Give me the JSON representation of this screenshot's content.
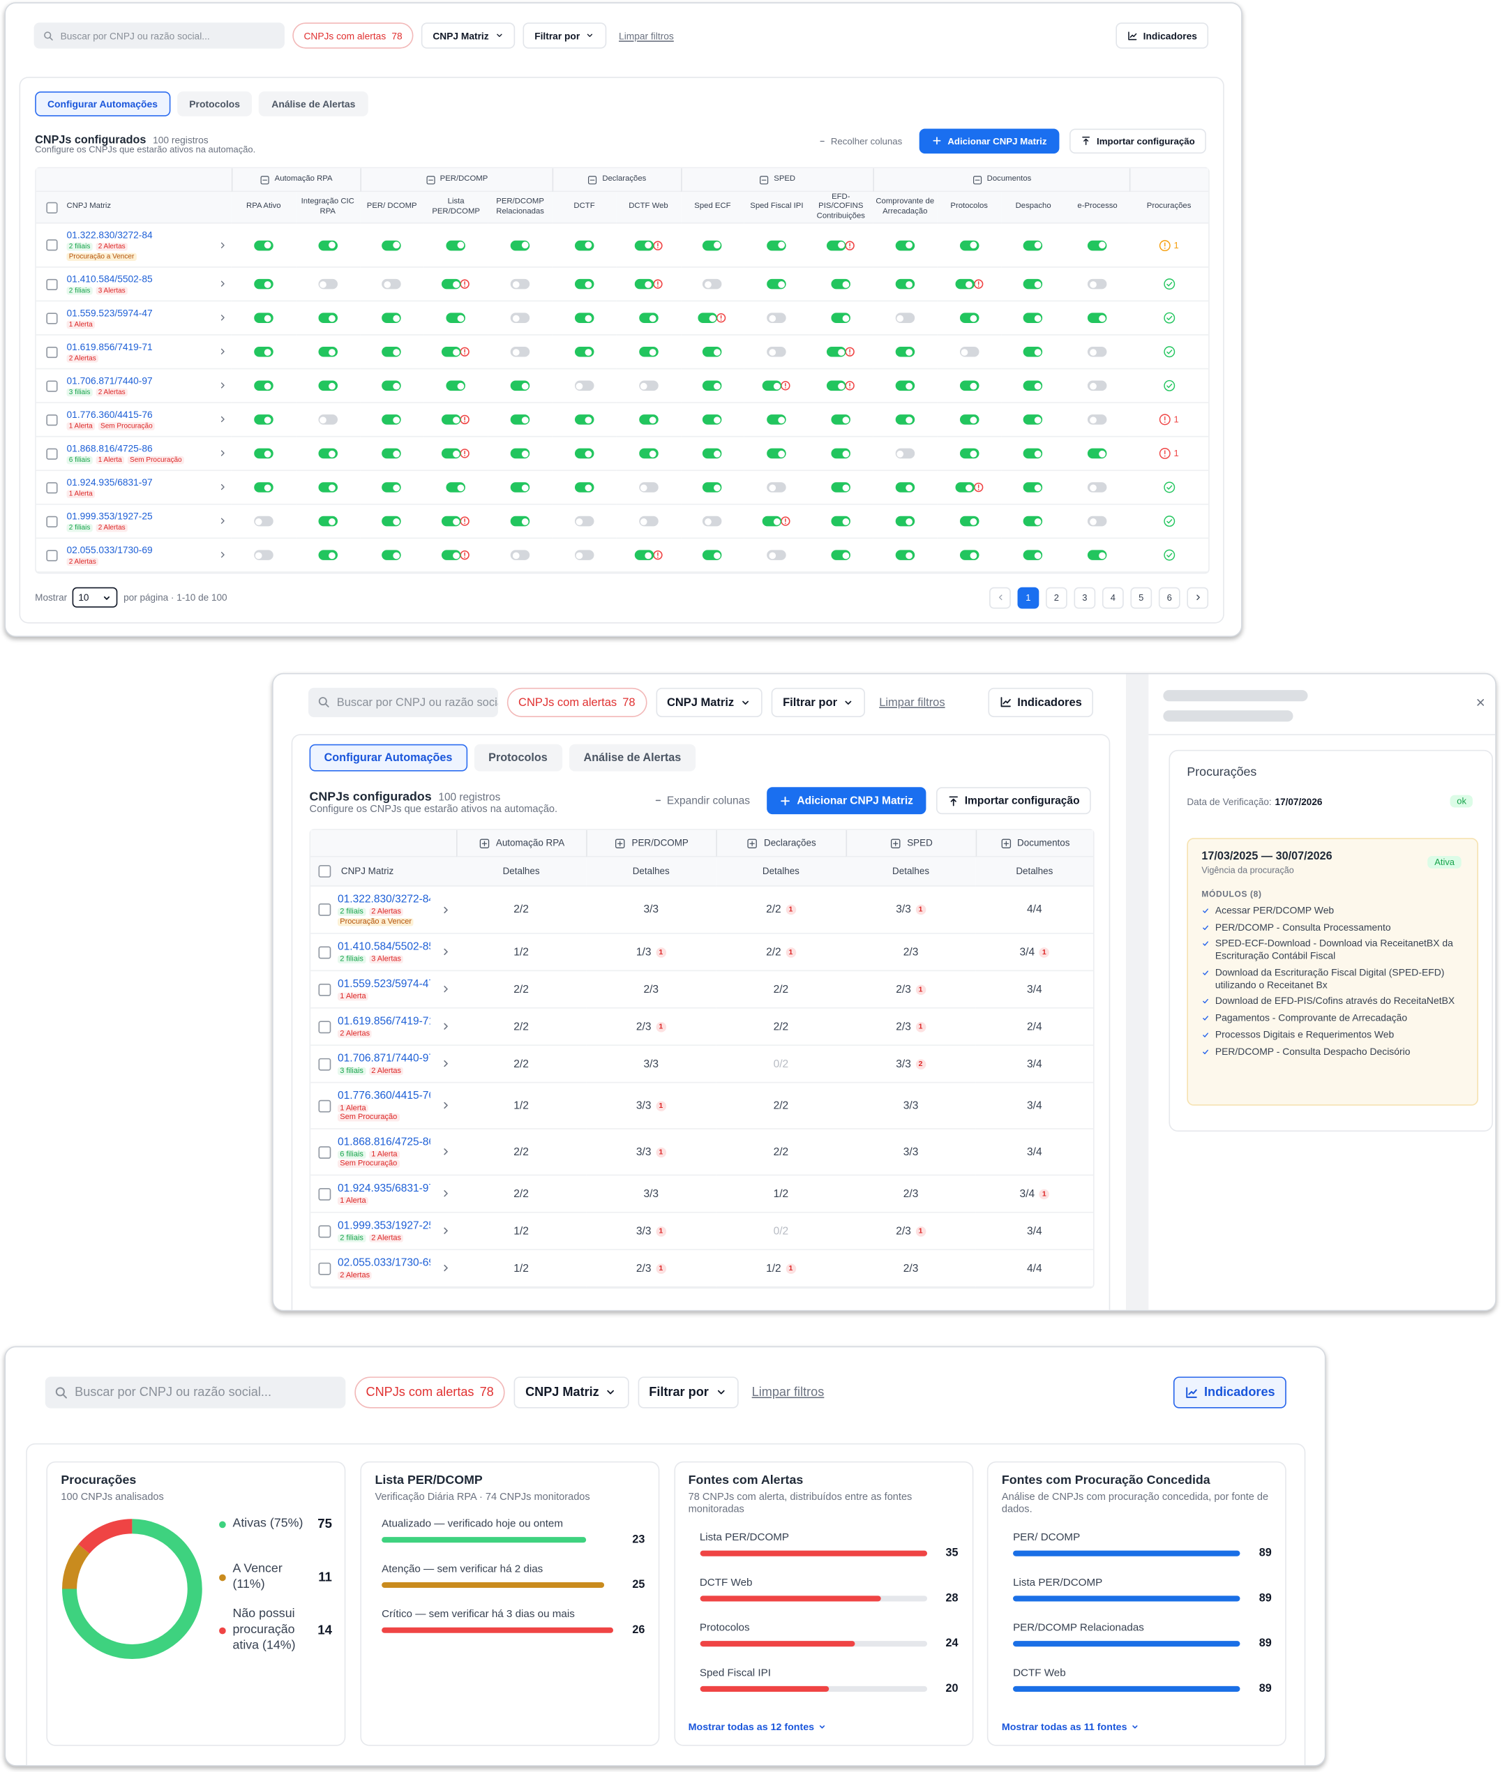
{
  "toolbar": {
    "search_placeholder": "Buscar por CNPJ ou razão social...",
    "alerts_chip": "CNPJs com alertas",
    "alerts_count": 78,
    "cnpj_filter": "CNPJ Matriz",
    "filter_by": "Filtrar por",
    "clear_filters": "Limpar filtros",
    "indicators": "Indicadores"
  },
  "tabs": [
    "Configurar Automações",
    "Protocolos",
    "Análise de Alertas"
  ],
  "active_tab": 0,
  "section": {
    "title": "CNPJs configurados",
    "records": "100 registros",
    "subtitle": "Configure os CNPJs que estarão ativos na automação.",
    "collapse": "Recolher colunas",
    "expand": "Expandir colunas",
    "add_button": "Adicionar CNPJ Matriz",
    "import_button": "Importar configuração"
  },
  "table": {
    "cnpj_header": "CNPJ Matriz",
    "status_header": "Procurações",
    "details_header": "Detalhes",
    "groups": [
      {
        "name": "Automação RPA",
        "columns": [
          "RPA Ativo",
          "Integração CIC RPA"
        ]
      },
      {
        "name": "PER/DCOMP",
        "columns": [
          "PER/ DCOMP",
          "Lista PER/DCOMP",
          "PER/DCOMP Relacionadas"
        ]
      },
      {
        "name": "Declarações",
        "columns": [
          "DCTF",
          "DCTF Web"
        ]
      },
      {
        "name": "SPED",
        "columns": [
          "Sped ECF",
          "Sped Fiscal IPI",
          "EFD-PIS/COFINS Contribuições"
        ]
      },
      {
        "name": "Documentos",
        "columns": [
          "Comprovante de Arrecadação",
          "Protocolos",
          "Despacho",
          "e-Processo"
        ]
      }
    ],
    "rows": [
      {
        "cnpj": "01.322.830/3272-84",
        "tags": [
          {
            "text": "2 filiais",
            "tone": "green"
          },
          {
            "text": "2 Alertas",
            "tone": "red"
          },
          {
            "text": "Procuração a Vencer",
            "tone": "amber"
          }
        ],
        "toggles": "111111a11a1111",
        "procuracao": {
          "state": "warning",
          "count": 1
        },
        "details": [
          "2/2",
          "3/3",
          "2/2",
          "3/3",
          "4/4"
        ],
        "detail_alerts": [
          null,
          null,
          1,
          1,
          null
        ]
      },
      {
        "cnpj": "01.410.584/5502-85",
        "tags": [
          {
            "text": "2 filiais",
            "tone": "green"
          },
          {
            "text": "3 Alertas",
            "tone": "red"
          }
        ],
        "toggles": "100a01a0111a10",
        "procuracao": {
          "state": "ok"
        },
        "details": [
          "1/2",
          "1/3",
          "2/2",
          "2/3",
          "3/4"
        ],
        "detail_alerts": [
          null,
          1,
          1,
          null,
          1
        ]
      },
      {
        "cnpj": "01.559.523/5974-47",
        "tags": [
          {
            "text": "1 Alerta",
            "tone": "red"
          }
        ],
        "toggles": "1111011a010111",
        "procuracao": {
          "state": "ok"
        },
        "details": [
          "2/2",
          "2/3",
          "2/2",
          "2/3",
          "3/4"
        ],
        "detail_alerts": [
          null,
          null,
          null,
          1,
          null
        ]
      },
      {
        "cnpj": "01.619.856/7419-71",
        "tags": [
          {
            "text": "2 Alertas",
            "tone": "red"
          }
        ],
        "toggles": "111a01110a1010",
        "procuracao": {
          "state": "ok"
        },
        "details": [
          "2/2",
          "2/3",
          "2/2",
          "2/3",
          "2/4"
        ],
        "detail_alerts": [
          null,
          1,
          null,
          1,
          null
        ]
      },
      {
        "cnpj": "01.706.871/7440-97",
        "tags": [
          {
            "text": "3 filiais",
            "tone": "green"
          },
          {
            "text": "2 Alertas",
            "tone": "red"
          }
        ],
        "toggles": "11111001aa1110",
        "procuracao": {
          "state": "ok"
        },
        "details": [
          "2/2",
          "3/3",
          "0/2",
          "3/3",
          "3/4"
        ],
        "detail_alerts": [
          null,
          null,
          null,
          2,
          null
        ]
      },
      {
        "cnpj": "01.776.360/4415-76",
        "tags": [
          {
            "text": "1 Alerta",
            "tone": "red"
          },
          {
            "text": "Sem Procuração",
            "tone": "red"
          }
        ],
        "toggles": "101a1111111110",
        "procuracao": {
          "state": "error",
          "count": 1
        },
        "details": [
          "1/2",
          "3/3",
          "2/2",
          "3/3",
          "3/4"
        ],
        "detail_alerts": [
          null,
          1,
          null,
          null,
          null
        ]
      },
      {
        "cnpj": "01.868.816/4725-86",
        "tags": [
          {
            "text": "6 filiais",
            "tone": "green"
          },
          {
            "text": "1 Alerta",
            "tone": "red"
          },
          {
            "text": "Sem Procuração",
            "tone": "red"
          }
        ],
        "toggles": "111a1111110111",
        "procuracao": {
          "state": "error",
          "count": 1
        },
        "details": [
          "2/2",
          "3/3",
          "2/2",
          "3/3",
          "3/4"
        ],
        "detail_alerts": [
          null,
          1,
          null,
          null,
          null
        ]
      },
      {
        "cnpj": "01.924.935/6831-97",
        "tags": [
          {
            "text": "1 Alerta",
            "tone": "red"
          }
        ],
        "toggles": "11111101011a10",
        "procuracao": {
          "state": "ok"
        },
        "details": [
          "2/2",
          "3/3",
          "1/2",
          "2/3",
          "3/4"
        ],
        "detail_alerts": [
          null,
          null,
          null,
          null,
          1
        ]
      },
      {
        "cnpj": "01.999.353/1927-25",
        "tags": [
          {
            "text": "2 filiais",
            "tone": "green"
          },
          {
            "text": "2 Alertas",
            "tone": "red"
          }
        ],
        "toggles": "011a1000a11110",
        "procuracao": {
          "state": "ok"
        },
        "details": [
          "1/2",
          "3/3",
          "0/2",
          "2/3",
          "3/4"
        ],
        "detail_alerts": [
          null,
          1,
          null,
          1,
          null
        ]
      },
      {
        "cnpj": "02.055.033/1730-69",
        "tags": [
          {
            "text": "2 Alertas",
            "tone": "red"
          }
        ],
        "toggles": "011a00a1011111",
        "procuracao": {
          "state": "ok"
        },
        "details": [
          "1/2",
          "2/3",
          "1/2",
          "2/3",
          "4/4"
        ],
        "detail_alerts": [
          null,
          1,
          1,
          null,
          null
        ]
      }
    ]
  },
  "pagination": {
    "show": "Mostrar",
    "page_size": 10,
    "summary": "por página · 1-10 de 100",
    "pages": [
      1,
      2,
      3,
      4,
      5,
      6
    ],
    "current": 1
  },
  "drawer": {
    "title": "Procurações",
    "verification_label": "Data de Verificação:",
    "verification_date": "17/07/2026",
    "status": "ok",
    "period": "17/03/2025 — 30/07/2026",
    "period_caption": "Vigência da procuração",
    "period_status": "Ativa",
    "modules_title": "MÓDULOS (8)",
    "modules": [
      "Acessar PER/DCOMP Web",
      "PER/DCOMP - Consulta Processamento",
      "SPED-ECF-Download - Download via ReceitanetBX da Escrituração Contábil Fiscal",
      "Download da Escrituração Fiscal Digital (SPED-EFD) utilizando o Receitanet Bx",
      "Download de EFD-PIS/Cofins através do ReceitaNetBX",
      "Pagamentos - Comprovante de Arrecadação",
      "Processos Digitais e Requerimentos Web",
      "PER/DCOMP - Consulta Despacho Decisório"
    ]
  },
  "dashboard": {
    "procuracoes": {
      "title": "Procurações",
      "subtitle": "100 CNPJs analisados",
      "segments": [
        {
          "name": "Ativas (75%)",
          "value": 75,
          "color": "#3ed27f"
        },
        {
          "name": "A Vencer (11%)",
          "value": 11,
          "color": "#c98b1e"
        },
        {
          "name": "Não possui procuração ativa (14%)",
          "value": 14,
          "color": "#ef4444"
        }
      ]
    },
    "bar_cards": [
      {
        "title": "Lista PER/DCOMP",
        "subtitle": "Verificação Diária RPA · 74 CNPJs monitorados",
        "track": false,
        "items": [
          {
            "name": "Atualizado — verificado hoje ou ontem",
            "value": 23,
            "color": "#3ed27f"
          },
          {
            "name": "Atenção — sem verificar há 2 dias",
            "value": 25,
            "color": "#c98b1e"
          },
          {
            "name": "Crítico — sem verificar há 3 dias ou mais",
            "value": 26,
            "color": "#ef4444"
          }
        ]
      },
      {
        "title": "Fontes com Alertas",
        "subtitle": "78 CNPJs com alerta, distribuídos entre as fontes monitoradas",
        "track": true,
        "color": "#ef4444",
        "more": "Mostrar todas as 12 fontes",
        "items": [
          {
            "name": "Lista PER/DCOMP",
            "value": 35
          },
          {
            "name": "DCTF Web",
            "value": 28
          },
          {
            "name": "Protocolos",
            "value": 24
          },
          {
            "name": "Sped Fiscal IPI",
            "value": 20
          }
        ]
      },
      {
        "title": "Fontes com Procuração Concedida",
        "subtitle": "Análise de CNPJs com procuração concedida, por fonte de dados.",
        "track": true,
        "color": "#1a6fe6",
        "more": "Mostrar todas as 11 fontes",
        "items": [
          {
            "name": "PER/ DCOMP",
            "value": 89
          },
          {
            "name": "Lista PER/DCOMP",
            "value": 89
          },
          {
            "name": "PER/DCOMP Relacionadas",
            "value": 89
          },
          {
            "name": "DCTF Web",
            "value": 89
          }
        ]
      }
    ]
  }
}
